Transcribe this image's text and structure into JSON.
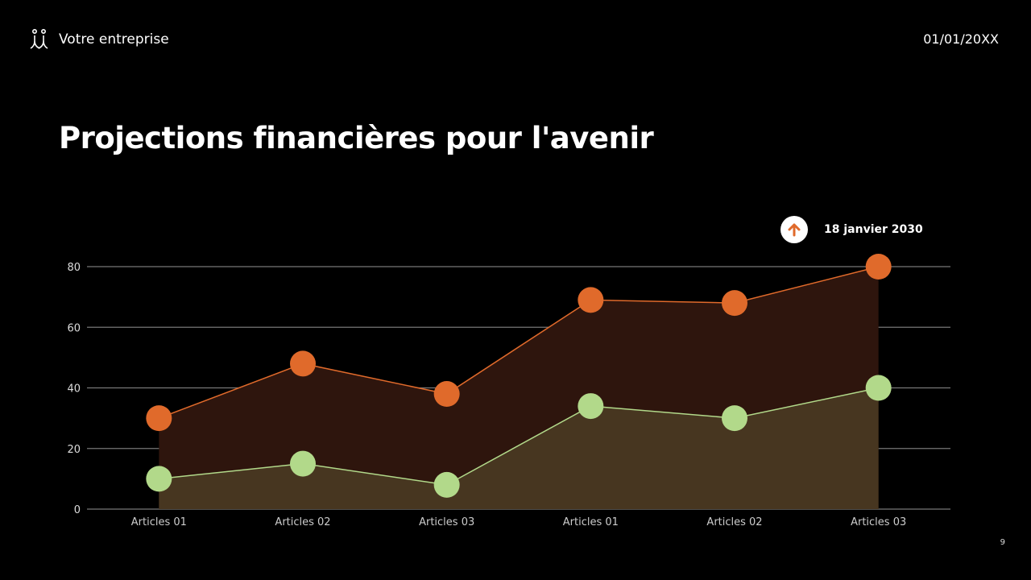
{
  "header": {
    "company": "Votre entreprise",
    "date": "01/01/20XX",
    "logo_icon": "people-icon"
  },
  "title": "Projections financières pour l'avenir",
  "annotation": {
    "icon": "arrow-up-icon",
    "label": "18 janvier 2030",
    "icon_color": "#e06a2b"
  },
  "page_number": "9",
  "chart_data": {
    "type": "area",
    "categories": [
      "Articles 01",
      "Articles 02",
      "Articles 03",
      "Articles 01",
      "Articles 02",
      "Articles 03"
    ],
    "ylim": [
      0,
      80
    ],
    "yticks": [
      0,
      20,
      40,
      60,
      80
    ],
    "grid": true,
    "series": [
      {
        "values": [
          30,
          48,
          38,
          69,
          68,
          80
        ],
        "color": "#e06a2b",
        "fill": "#2e150d"
      },
      {
        "values": [
          10,
          15,
          8,
          34,
          30,
          40
        ],
        "color": "#b2d98a",
        "fill": "#473620"
      }
    ]
  }
}
